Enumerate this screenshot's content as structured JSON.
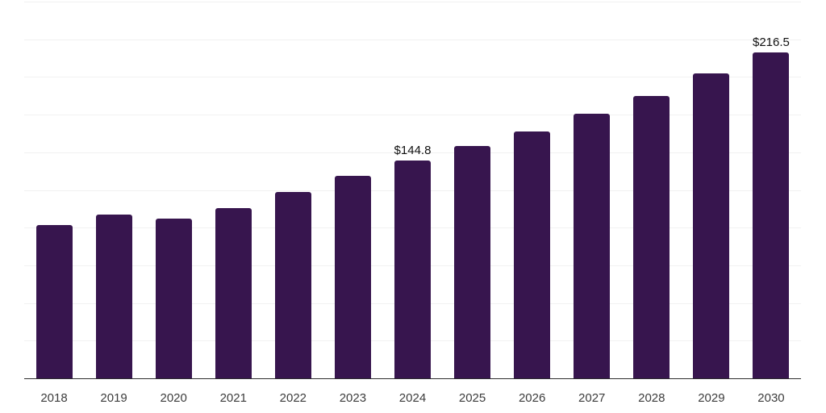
{
  "chart_data": {
    "type": "bar",
    "title": "",
    "xlabel": "",
    "ylabel": "",
    "categories": [
      "2018",
      "2019",
      "2020",
      "2021",
      "2022",
      "2023",
      "2024",
      "2025",
      "2026",
      "2027",
      "2028",
      "2029",
      "2030"
    ],
    "values": [
      101.5,
      108.9,
      106.1,
      113.2,
      123.4,
      134.2,
      144.8,
      154.2,
      163.8,
      175.5,
      187.6,
      202.3,
      216.5
    ],
    "annotations": [
      {
        "category": "2024",
        "text": "$144.8"
      },
      {
        "category": "2030",
        "text": "$216.5"
      }
    ],
    "ylim": [
      0,
      250
    ],
    "grid_step": 25,
    "grid": true,
    "legend": false,
    "y_tick_labels_visible": false
  },
  "style": {
    "bar_color": "#37154e",
    "grid_color": "#f1f1f1",
    "axis_color": "#2e2e2e",
    "tick_label_color": "#3c3c3c",
    "annotation_color": "#111111",
    "background": "#ffffff"
  }
}
